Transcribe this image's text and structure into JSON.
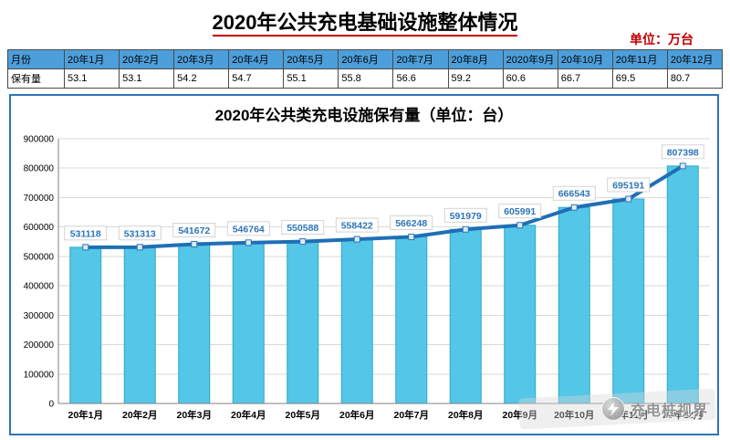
{
  "header": {
    "title": "2020年公共充电基础设施整体情况",
    "unit_label": "单位：万台"
  },
  "colors": {
    "accent_red": "#C00000",
    "table_header_bg": "#4D9FDB",
    "chart_border": "#2E75B6",
    "bar_fill": "#54C6E8",
    "line_color": "#1F6FB5"
  },
  "table": {
    "rows": [
      {
        "label": "月份",
        "cells": [
          "20年1月",
          "20年2月",
          "20年3月",
          "20年4月",
          "20年5月",
          "20年6月",
          "20年7月",
          "20年8月",
          "2020年9月",
          "20年10月",
          "20年11月",
          "20年12月"
        ]
      },
      {
        "label": "保有量",
        "cells": [
          "53.1",
          "53.1",
          "54.2",
          "54.7",
          "55.1",
          "55.8",
          "56.6",
          "59.2",
          "60.6",
          "66.7",
          "69.5",
          "80.7"
        ]
      }
    ]
  },
  "chart_data": {
    "type": "bar",
    "render": [
      "bar",
      "line"
    ],
    "title": "2020年公共类充电设施保有量（单位：台）",
    "categories": [
      "20年1月",
      "20年2月",
      "20年3月",
      "20年4月",
      "20年5月",
      "20年6月",
      "20年7月",
      "20年8月",
      "20年9月",
      "20年10月",
      "20年11月",
      "20年12月"
    ],
    "series": [
      {
        "name": "保有量",
        "values": [
          531118,
          531313,
          541672,
          546764,
          550588,
          558422,
          566248,
          591979,
          605991,
          666543,
          695191,
          807398
        ]
      }
    ],
    "xlabel": "",
    "ylabel": "",
    "ylim": [
      0,
      900000
    ],
    "ytick_interval": 100000,
    "grid": true,
    "legend": "none"
  },
  "watermark": {
    "text": "充电桩视界",
    "icon": "lightning-icon"
  }
}
